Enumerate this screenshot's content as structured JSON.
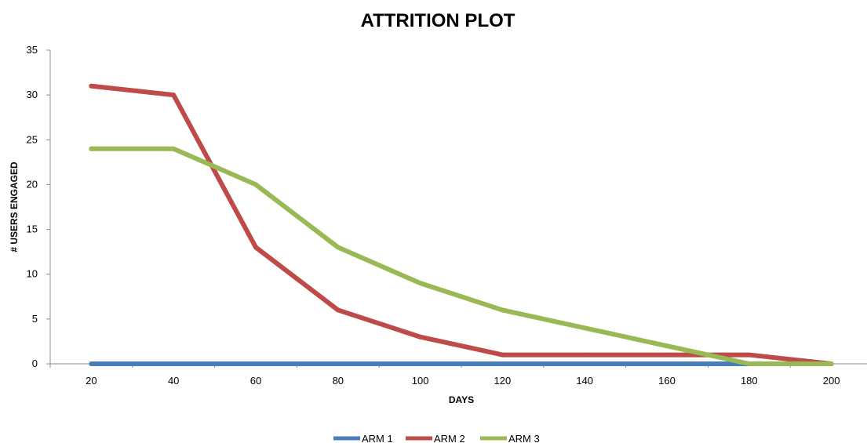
{
  "chart_data": {
    "type": "line",
    "title": "ATTRITION PLOT",
    "xlabel": "DAYS",
    "ylabel": "# USERS ENGAGED",
    "x": [
      20,
      40,
      60,
      80,
      100,
      120,
      140,
      160,
      180,
      200
    ],
    "ylim": [
      0,
      35
    ],
    "yticks": [
      0,
      5,
      10,
      15,
      20,
      25,
      30,
      35
    ],
    "grid": false,
    "legend_position": "bottom",
    "series": [
      {
        "name": "ARM 1",
        "color": "#4a7ebb",
        "values": [
          0,
          0,
          0,
          0,
          0,
          0,
          0,
          0,
          0,
          0
        ]
      },
      {
        "name": "ARM 2",
        "color": "#be4b48",
        "values": [
          31,
          30,
          13,
          6,
          3,
          1,
          1,
          1,
          1,
          0
        ]
      },
      {
        "name": "ARM 3",
        "color": "#98b954",
        "values": [
          24,
          24,
          20,
          13,
          9,
          6,
          4,
          2,
          0,
          0
        ]
      }
    ]
  }
}
